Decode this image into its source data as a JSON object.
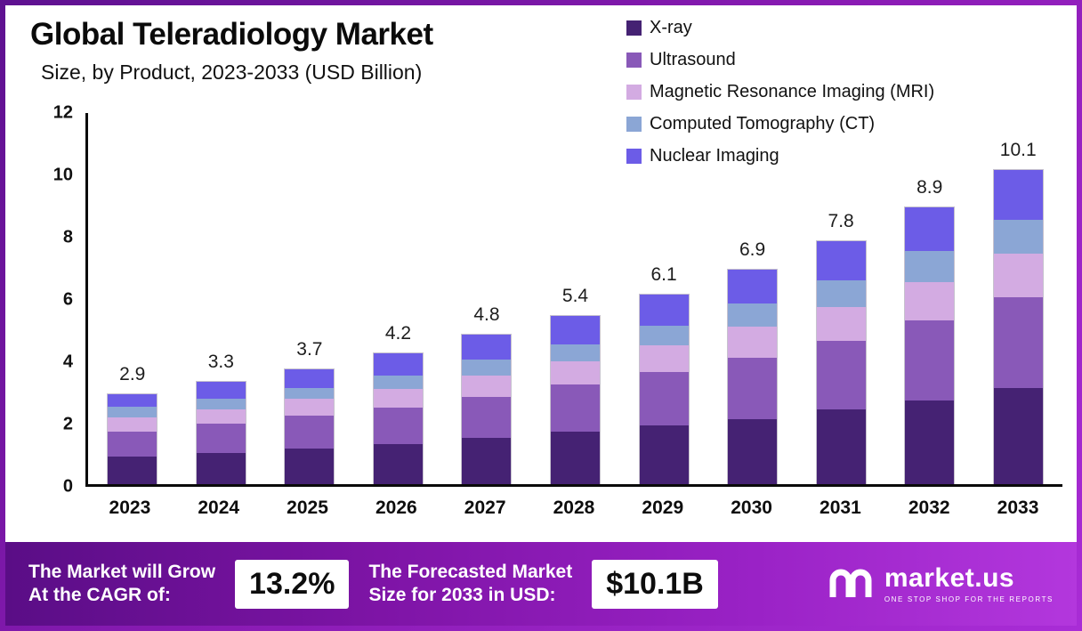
{
  "title": "Global Teleradiology Market",
  "subtitle": "Size, by Product, 2023-2033 (USD Billion)",
  "chart_data": {
    "type": "bar",
    "stacked": true,
    "title": "Global Teleradiology Market Size, by Product, 2023-2033 (USD Billion)",
    "categories": [
      "2023",
      "2024",
      "2025",
      "2026",
      "2027",
      "2028",
      "2029",
      "2030",
      "2031",
      "2032",
      "2033"
    ],
    "totals": [
      2.9,
      3.3,
      3.7,
      4.2,
      4.8,
      5.4,
      6.1,
      6.9,
      7.8,
      8.9,
      10.1
    ],
    "series": [
      {
        "name": "X-ray",
        "color": "#452273",
        "values": [
          0.9,
          1.0,
          1.15,
          1.3,
          1.5,
          1.7,
          1.9,
          2.1,
          2.4,
          2.7,
          3.1
        ]
      },
      {
        "name": "Ultrasound",
        "color": "#8959b8",
        "values": [
          0.8,
          0.95,
          1.05,
          1.15,
          1.3,
          1.5,
          1.7,
          1.95,
          2.2,
          2.55,
          2.9
        ]
      },
      {
        "name": "Magnetic Resonance Imaging (MRI)",
        "color": "#d3abe2",
        "values": [
          0.45,
          0.45,
          0.55,
          0.6,
          0.7,
          0.75,
          0.85,
          1.0,
          1.1,
          1.25,
          1.4
        ]
      },
      {
        "name": "Computed Tomography (CT)",
        "color": "#8ba6d5",
        "values": [
          0.35,
          0.35,
          0.35,
          0.45,
          0.5,
          0.55,
          0.65,
          0.75,
          0.85,
          1.0,
          1.1
        ]
      },
      {
        "name": "Nuclear Imaging",
        "color": "#6c5ce7",
        "values": [
          0.4,
          0.55,
          0.6,
          0.7,
          0.8,
          0.9,
          1.0,
          1.1,
          1.25,
          1.4,
          1.6
        ]
      }
    ],
    "xlabel": "",
    "ylabel": "",
    "ylim": [
      0,
      12
    ],
    "ytick_step": 2,
    "grid": false,
    "legend_position": "top-right"
  },
  "footer": {
    "cagr_label_line1": "The Market will Grow",
    "cagr_label_line2": "At the CAGR of:",
    "cagr_value": "13.2%",
    "forecast_label_line1": "The Forecasted Market",
    "forecast_label_line2": "Size for 2033 in USD:",
    "forecast_value": "$10.1B",
    "brand": "market.us",
    "brand_tagline": "ONE STOP SHOP FOR THE REPORTS"
  }
}
